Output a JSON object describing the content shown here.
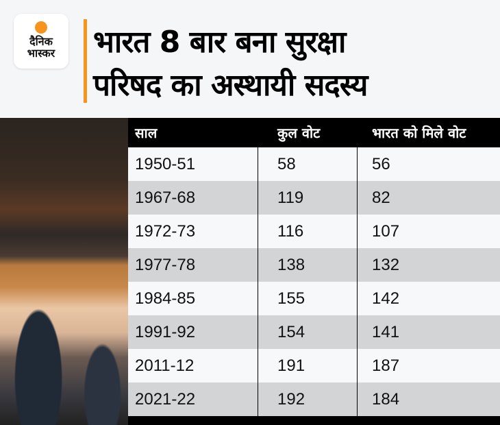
{
  "logo": {
    "line1": "दैनिक",
    "line2": "भास्कर",
    "accent": "#f7941d"
  },
  "title": {
    "line1": "भारत 8 बार बना सुरक्षा",
    "line2": "परिषद का अस्थायी सदस्य"
  },
  "chart_data": {
    "type": "table",
    "columns": [
      "साल",
      "कुल वोट",
      "भारत को मिले वोट"
    ],
    "rows": [
      [
        "1950-51",
        "58",
        "56"
      ],
      [
        "1967-68",
        "119",
        "82"
      ],
      [
        "1972-73",
        "116",
        "107"
      ],
      [
        "1977-78",
        "138",
        "132"
      ],
      [
        "1984-85",
        "155",
        "142"
      ],
      [
        "1991-92",
        "154",
        "141"
      ],
      [
        "2011-12",
        "191",
        "187"
      ],
      [
        "2021-22",
        "192",
        "184"
      ]
    ],
    "row_colors": [
      "#f7f8fa",
      "#d3d4d6"
    ]
  }
}
